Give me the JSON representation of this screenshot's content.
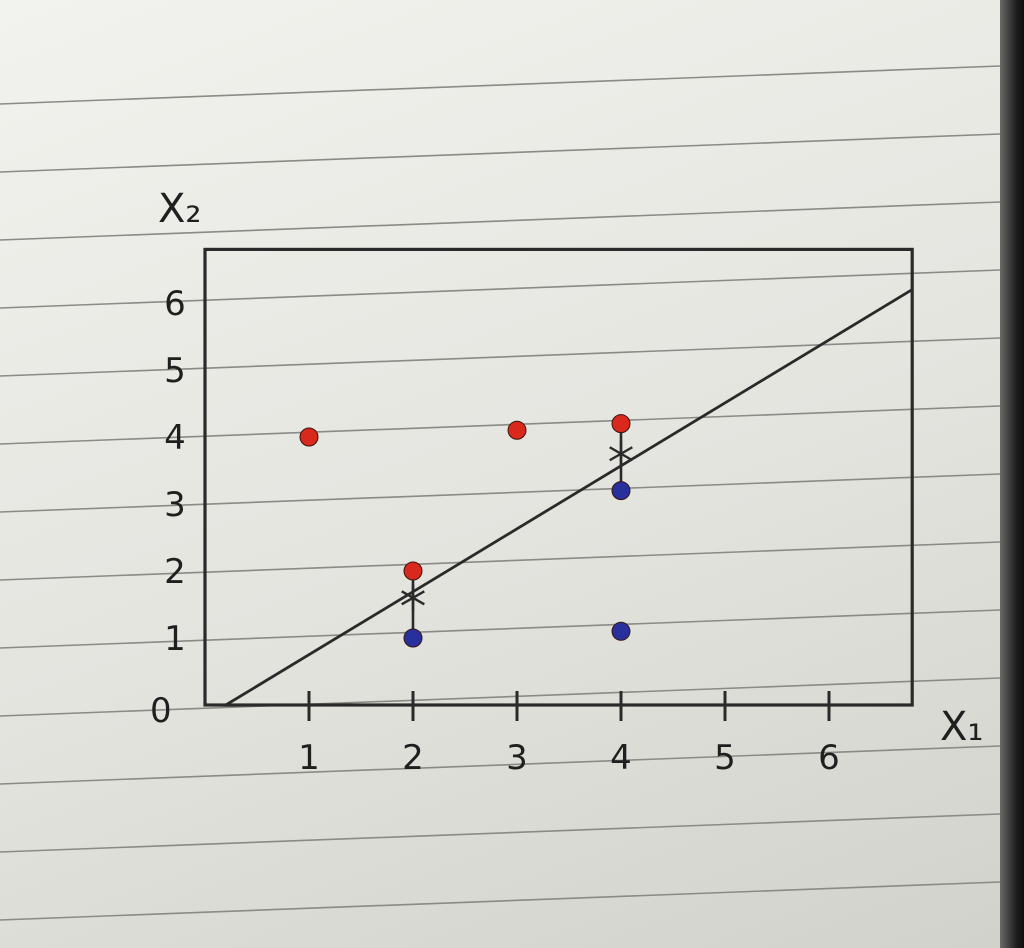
{
  "chart_data": {
    "type": "scatter",
    "xlabel": "X₁",
    "ylabel": "X₂",
    "x_ticks": [
      "1",
      "2",
      "3",
      "4",
      "5",
      "6"
    ],
    "y_ticks": [
      "0",
      "1",
      "2",
      "3",
      "4",
      "5",
      "6"
    ],
    "origin_label": "0",
    "xlim": [
      0,
      6.8
    ],
    "ylim": [
      0,
      6.8
    ],
    "grid": false,
    "series": [
      {
        "color": "#d8291c",
        "points": [
          [
            1,
            4
          ],
          [
            3,
            4.1
          ],
          [
            4,
            4.2
          ],
          [
            2,
            2
          ]
        ]
      },
      {
        "color": "#27309c",
        "points": [
          [
            2,
            1
          ],
          [
            4,
            3.2
          ],
          [
            4,
            1.1
          ]
        ]
      }
    ],
    "line": {
      "from": [
        0.2,
        0
      ],
      "to": [
        6.8,
        6.2
      ]
    },
    "projections": [
      {
        "x": 2,
        "y_from": 1,
        "y_to": 2,
        "mark_y": 1.6
      },
      {
        "x": 4,
        "y_from": 3.2,
        "y_to": 4.2,
        "mark_y": 3.75
      }
    ]
  }
}
